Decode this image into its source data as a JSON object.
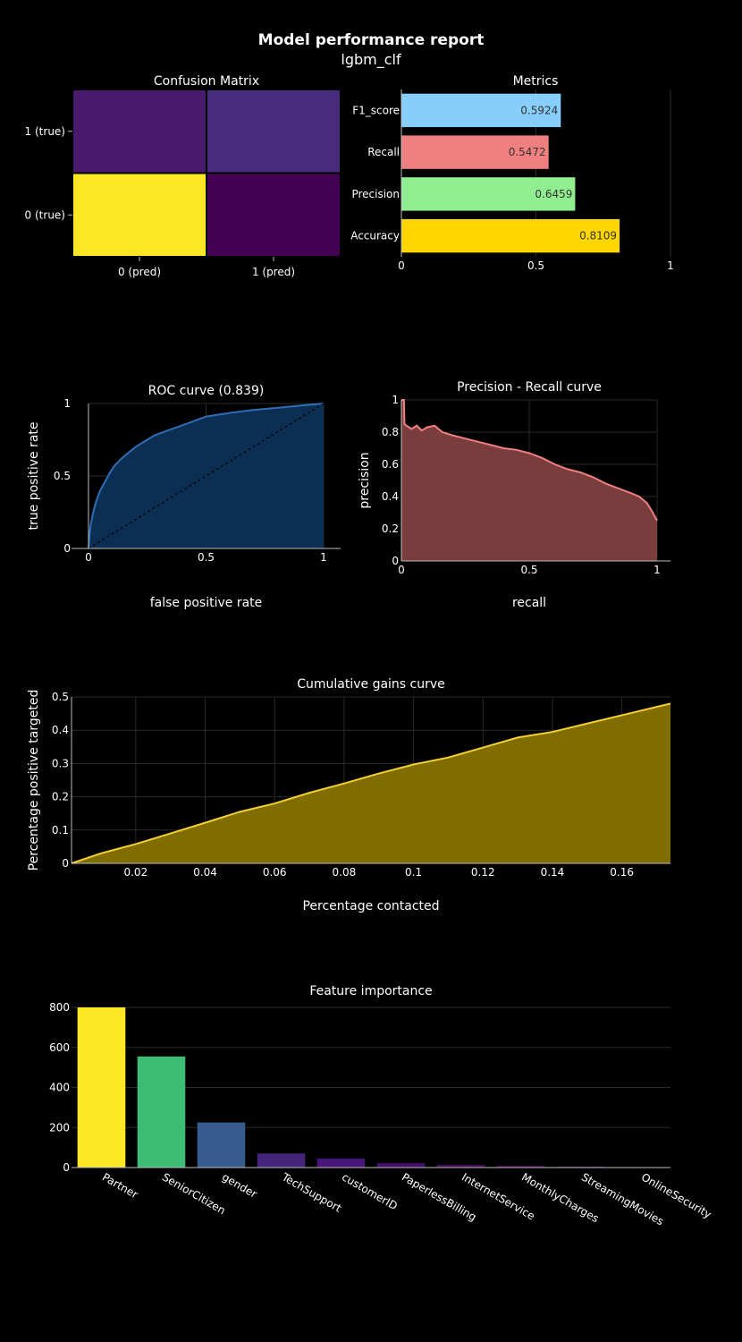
{
  "report": {
    "title": "Model performance report",
    "subtitle": "lgbm_clf"
  },
  "chart_data": [
    {
      "id": "confusion",
      "type": "heatmap",
      "title": "Confusion Matrix",
      "x": [
        "0 (pred)",
        "1 (pred)"
      ],
      "y": [
        "0 (true)",
        "1 (true)"
      ],
      "cells": [
        {
          "x": "0 (pred)",
          "y": "1 (true)",
          "color": "#481a6c"
        },
        {
          "x": "1 (pred)",
          "y": "1 (true)",
          "color": "#472d7b"
        },
        {
          "x": "0 (pred)",
          "y": "0 (true)",
          "color": "#fde725"
        },
        {
          "x": "1 (pred)",
          "y": "0 (true)",
          "color": "#440154"
        }
      ]
    },
    {
      "id": "metrics",
      "type": "bar",
      "orientation": "horizontal",
      "title": "Metrics",
      "categories": [
        "F1_score",
        "Recall",
        "Precision",
        "Accuracy"
      ],
      "values": [
        0.5924,
        0.5472,
        0.6459,
        0.8109
      ],
      "colors": [
        "#87cefa",
        "#f08080",
        "#90ee90",
        "#ffd700"
      ],
      "xlim": [
        0,
        1
      ],
      "xticks": [
        "0",
        "0.5",
        "1"
      ]
    },
    {
      "id": "roc",
      "type": "area",
      "title": "ROC curve (0.839)",
      "xlabel": "false positive rate",
      "ylabel": "true positive rate",
      "xlim": [
        0,
        1
      ],
      "ylim": [
        0,
        1
      ],
      "xticks": [
        "0",
        "0.5",
        "1"
      ],
      "yticks": [
        "0",
        "0.5",
        "1"
      ],
      "line_color": "#2f6db4",
      "fill_color": "#0b2e52",
      "x": [
        0,
        0.005,
        0.01,
        0.02,
        0.03,
        0.04,
        0.05,
        0.07,
        0.09,
        0.11,
        0.14,
        0.17,
        0.2,
        0.24,
        0.28,
        0.33,
        0.4,
        0.45,
        0.5,
        0.6,
        0.7,
        0.8,
        0.9,
        1.0
      ],
      "y": [
        0,
        0.1,
        0.17,
        0.25,
        0.31,
        0.36,
        0.4,
        0.46,
        0.52,
        0.57,
        0.62,
        0.66,
        0.7,
        0.74,
        0.78,
        0.81,
        0.85,
        0.88,
        0.91,
        0.935,
        0.955,
        0.97,
        0.985,
        1.0
      ],
      "diagonal": true
    },
    {
      "id": "pr",
      "type": "area",
      "title": "Precision - Recall curve",
      "xlabel": "recall",
      "ylabel": "precision",
      "xlim": [
        0,
        1
      ],
      "ylim": [
        0,
        1
      ],
      "xticks": [
        "0",
        "0.5",
        "1"
      ],
      "yticks": [
        "0",
        "0.2",
        "0.4",
        "0.6",
        "0.8",
        "1"
      ],
      "line_color": "#f08080",
      "fill_color": "#7a3d3d",
      "x": [
        0,
        0.01,
        0.012,
        0.02,
        0.04,
        0.06,
        0.08,
        0.1,
        0.13,
        0.16,
        0.18,
        0.2,
        0.25,
        0.3,
        0.35,
        0.4,
        0.45,
        0.5,
        0.55,
        0.6,
        0.65,
        0.7,
        0.75,
        0.8,
        0.85,
        0.9,
        0.93,
        0.96,
        0.98,
        1.0
      ],
      "y": [
        1.0,
        1.0,
        0.85,
        0.84,
        0.82,
        0.84,
        0.81,
        0.83,
        0.84,
        0.8,
        0.79,
        0.78,
        0.76,
        0.74,
        0.72,
        0.7,
        0.69,
        0.67,
        0.64,
        0.6,
        0.57,
        0.55,
        0.52,
        0.48,
        0.45,
        0.42,
        0.4,
        0.36,
        0.31,
        0.25
      ]
    },
    {
      "id": "gains",
      "type": "area",
      "title": "Cumulative gains curve",
      "xlabel": "Percentage contacted",
      "ylabel": "Percentage positive targeted",
      "xlim": [
        0.0015,
        0.174
      ],
      "ylim": [
        0,
        0.5
      ],
      "xticks": [
        "0.02",
        "0.04",
        "0.06",
        "0.08",
        "0.1",
        "0.12",
        "0.14",
        "0.16"
      ],
      "yticks": [
        "0",
        "0.1",
        "0.2",
        "0.3",
        "0.4",
        "0.5"
      ],
      "line_color": "#f5d033",
      "fill_color": "#7f6d00",
      "x": [
        0.0015,
        0.01,
        0.02,
        0.03,
        0.04,
        0.05,
        0.06,
        0.07,
        0.08,
        0.09,
        0.1,
        0.11,
        0.12,
        0.13,
        0.14,
        0.15,
        0.16,
        0.17,
        0.174
      ],
      "y": [
        0.0,
        0.03,
        0.058,
        0.09,
        0.122,
        0.155,
        0.18,
        0.212,
        0.24,
        0.27,
        0.297,
        0.318,
        0.348,
        0.378,
        0.395,
        0.42,
        0.445,
        0.47,
        0.48
      ]
    },
    {
      "id": "features",
      "type": "bar",
      "title": "Feature importance",
      "categories": [
        "Partner",
        "SeniorCitizen",
        "gender",
        "TechSupport",
        "customerID",
        "PaperlessBilling",
        "InternetService",
        "MonthlyCharges",
        "StreamingMovies",
        "OnlineSecurity"
      ],
      "values": [
        800,
        555,
        225,
        70,
        45,
        22,
        13,
        8,
        5,
        2
      ],
      "colors": [
        "#fde725",
        "#3dbc74",
        "#365c8d",
        "#46247a",
        "#46157a",
        "#440f6a",
        "#440a60",
        "#44075a",
        "#440456",
        "#440154"
      ],
      "ylim": [
        0,
        800
      ],
      "yticks": [
        "0",
        "200",
        "400",
        "600",
        "800"
      ]
    }
  ]
}
